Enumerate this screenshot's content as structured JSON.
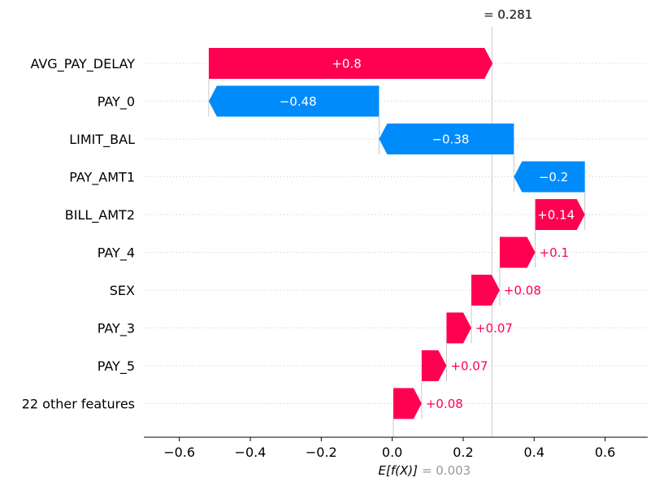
{
  "chart_data": {
    "type": "waterfall",
    "features": [
      "AVG_PAY_DELAY",
      "PAY_0",
      "LIMIT_BAL",
      "PAY_AMT1",
      "BILL_AMT2",
      "PAY_4",
      "SEX",
      "PAY_3",
      "PAY_5",
      "22 other features"
    ],
    "values": [
      0.8,
      -0.48,
      -0.38,
      -0.2,
      0.14,
      0.1,
      0.08,
      0.07,
      0.07,
      0.08
    ],
    "value_labels": [
      "+0.8",
      "−0.48",
      "−0.38",
      "−0.2",
      "+0.14",
      "+0.1",
      "+0.08",
      "+0.07",
      "+0.07",
      "+0.08"
    ],
    "base_value": 0.003,
    "base_value_label_math": "E[f(X)]",
    "base_value_label_value": "= 0.003",
    "final_value": 0.281,
    "final_value_label": "= 0.281",
    "final_value_ghost_label": "0.281",
    "xlim": [
      -0.7,
      0.72
    ],
    "xticks": [
      -0.6,
      -0.4,
      -0.2,
      0.0,
      0.2,
      0.4,
      0.6
    ],
    "xtick_labels": [
      "−0.6",
      "−0.4",
      "−0.2",
      "0.0",
      "0.2",
      "0.4",
      "0.6"
    ],
    "positive_color": "#ff0051",
    "negative_color": "#008bfb",
    "grid": "dotted horizontal lines per feature row"
  }
}
